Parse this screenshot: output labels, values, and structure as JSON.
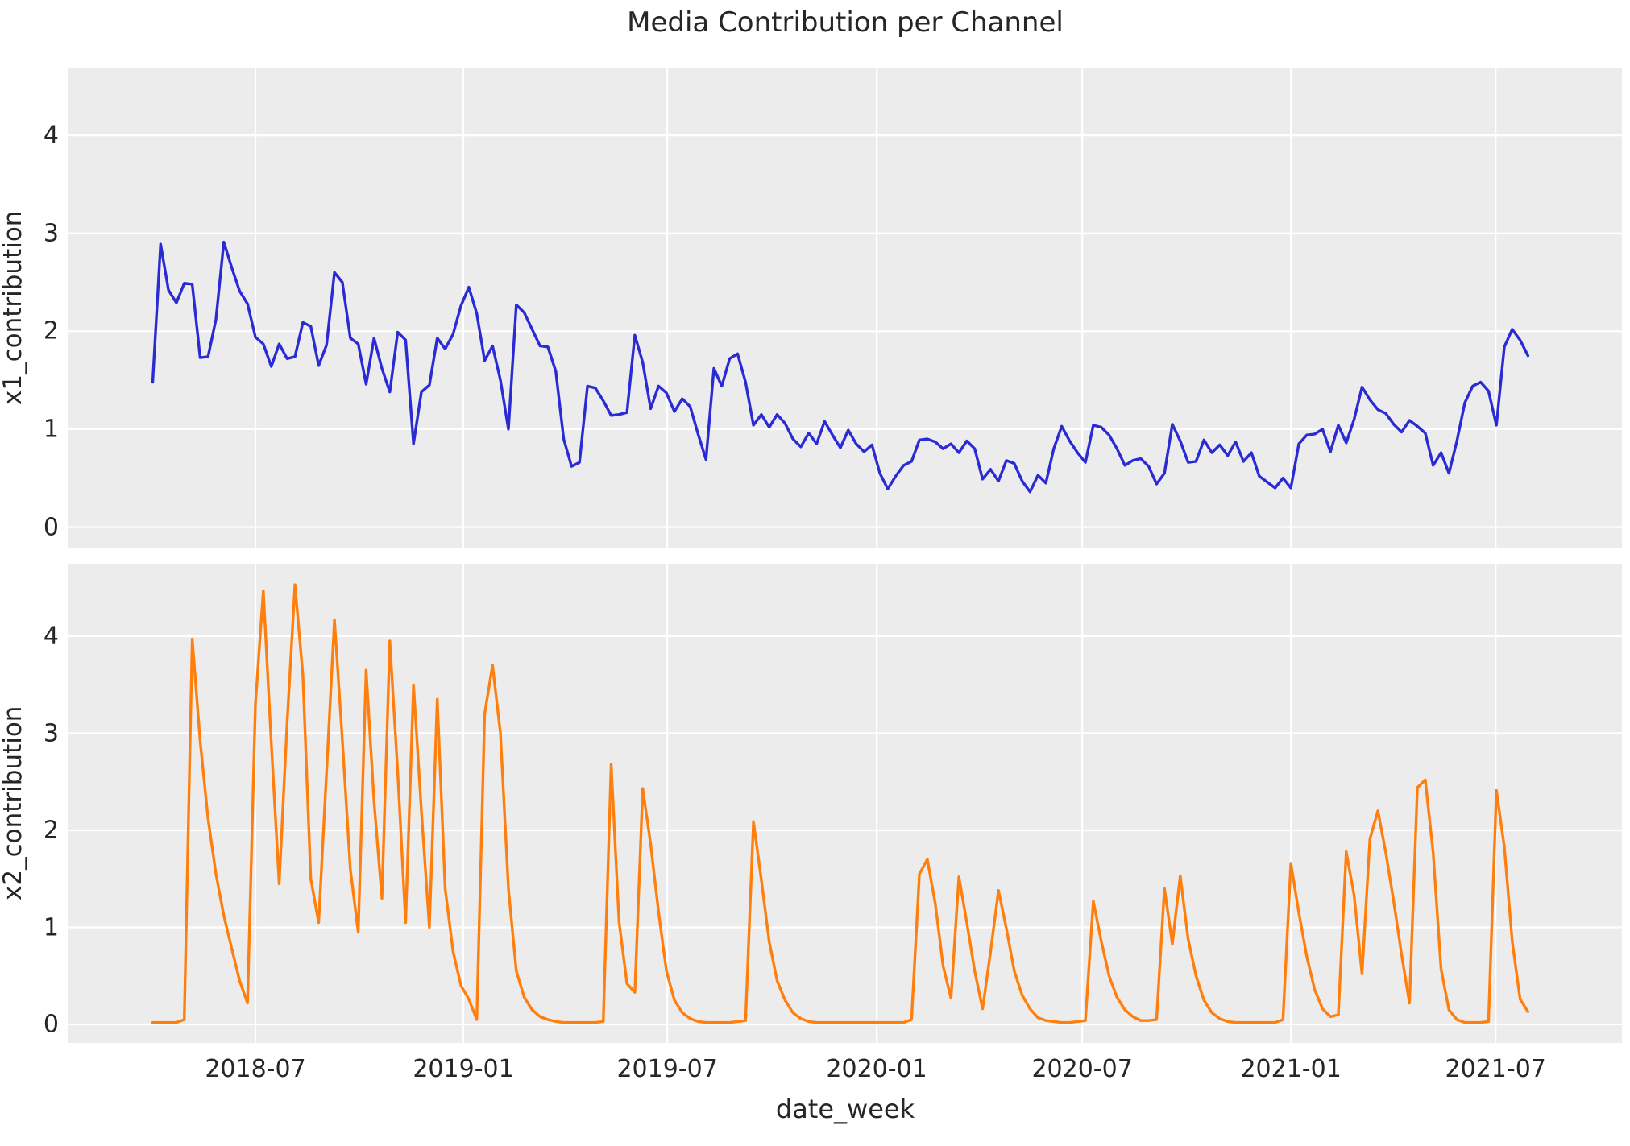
{
  "title": "Media Contribution per Channel",
  "xlabel": "date_week",
  "colors": {
    "x1_line": "#2b2bd6",
    "x2_line": "#ff7f0e",
    "plot_background": "#ececec",
    "grid": "#ffffff",
    "text": "#262626",
    "figure_background": "#ffffff"
  },
  "axes": {
    "y_ticks": [
      0,
      1,
      2,
      3,
      4
    ],
    "ylim": [
      -0.22,
      4.72
    ],
    "x_ticks": [
      {
        "label": "2018-07",
        "week": 13.0
      },
      {
        "label": "2019-01",
        "week": 39.3
      },
      {
        "label": "2019-07",
        "week": 65.1
      },
      {
        "label": "2020-01",
        "week": 91.6
      },
      {
        "label": "2020-07",
        "week": 117.6
      },
      {
        "label": "2021-01",
        "week": 144.0
      },
      {
        "label": "2021-07",
        "week": 169.9
      }
    ],
    "xlim_weeks": [
      -10.65,
      185.9
    ],
    "grid": true
  },
  "chart_data": [
    {
      "type": "line",
      "name": "x1_contribution",
      "ylabel": "x1_contribution",
      "color_key": "x1_line",
      "x0_date": "2018-04-01",
      "x_step_days": 7,
      "values": [
        1.48,
        2.89,
        2.42,
        2.29,
        2.49,
        2.48,
        1.73,
        1.74,
        2.12,
        2.91,
        2.65,
        2.41,
        2.28,
        1.94,
        1.87,
        1.64,
        1.87,
        1.72,
        1.74,
        2.09,
        2.05,
        1.65,
        1.86,
        2.6,
        2.5,
        1.93,
        1.87,
        1.46,
        1.93,
        1.62,
        1.38,
        1.99,
        1.91,
        0.85,
        1.38,
        1.45,
        1.93,
        1.82,
        1.97,
        2.26,
        2.45,
        2.18,
        1.7,
        1.85,
        1.5,
        1.0,
        2.27,
        2.19,
        2.02,
        1.85,
        1.84,
        1.59,
        0.9,
        0.62,
        0.66,
        1.44,
        1.42,
        1.29,
        1.14,
        1.15,
        1.17,
        1.96,
        1.68,
        1.21,
        1.44,
        1.37,
        1.18,
        1.31,
        1.23,
        0.95,
        0.69,
        1.62,
        1.44,
        1.72,
        1.77,
        1.48,
        1.04,
        1.15,
        1.02,
        1.15,
        1.06,
        0.9,
        0.82,
        0.96,
        0.85,
        1.08,
        0.94,
        0.81,
        0.99,
        0.85,
        0.77,
        0.84,
        0.55,
        0.39,
        0.52,
        0.63,
        0.67,
        0.89,
        0.9,
        0.87,
        0.8,
        0.85,
        0.76,
        0.88,
        0.8,
        0.49,
        0.59,
        0.47,
        0.68,
        0.65,
        0.47,
        0.36,
        0.53,
        0.45,
        0.8,
        1.03,
        0.88,
        0.76,
        0.66,
        1.04,
        1.02,
        0.94,
        0.8,
        0.63,
        0.68,
        0.7,
        0.62,
        0.44,
        0.55,
        1.05,
        0.88,
        0.66,
        0.67,
        0.89,
        0.76,
        0.84,
        0.73,
        0.87,
        0.67,
        0.76,
        0.52,
        0.46,
        0.4,
        0.5,
        0.4,
        0.85,
        0.94,
        0.95,
        1.0,
        0.77,
        1.04,
        0.86,
        1.1,
        1.43,
        1.3,
        1.2,
        1.16,
        1.05,
        0.97,
        1.09,
        1.03,
        0.96,
        0.63,
        0.76,
        0.55,
        0.88,
        1.27,
        1.44,
        1.48,
        1.39,
        1.04,
        1.84,
        2.02,
        1.91,
        1.75
      ]
    },
    {
      "type": "line",
      "name": "x2_contribution",
      "ylabel": "x2_contribution",
      "color_key": "x2_line",
      "x0_date": "2018-04-01",
      "x_step_days": 7,
      "values": [
        0.02,
        0.02,
        0.02,
        0.02,
        0.05,
        3.97,
        2.92,
        2.12,
        1.55,
        1.12,
        0.78,
        0.45,
        0.22,
        3.3,
        4.47,
        2.9,
        1.45,
        3.1,
        4.53,
        3.6,
        1.5,
        1.05,
        2.6,
        4.17,
        2.93,
        1.6,
        0.95,
        3.65,
        2.3,
        1.3,
        3.95,
        2.6,
        1.05,
        3.5,
        2.2,
        1.0,
        3.35,
        1.4,
        0.75,
        0.4,
        0.26,
        0.05,
        3.2,
        3.7,
        3.0,
        1.4,
        0.55,
        0.28,
        0.15,
        0.08,
        0.05,
        0.03,
        0.02,
        0.02,
        0.02,
        0.02,
        0.02,
        0.03,
        2.68,
        1.06,
        0.42,
        0.33,
        2.43,
        1.86,
        1.16,
        0.55,
        0.25,
        0.12,
        0.06,
        0.03,
        0.02,
        0.02,
        0.02,
        0.02,
        0.03,
        0.04,
        2.09,
        1.49,
        0.85,
        0.45,
        0.25,
        0.12,
        0.06,
        0.03,
        0.02,
        0.02,
        0.02,
        0.02,
        0.02,
        0.02,
        0.02,
        0.02,
        0.02,
        0.02,
        0.02,
        0.02,
        0.05,
        1.55,
        1.7,
        1.25,
        0.6,
        0.27,
        1.52,
        1.05,
        0.55,
        0.16,
        0.75,
        1.38,
        0.99,
        0.55,
        0.3,
        0.16,
        0.07,
        0.04,
        0.03,
        0.02,
        0.02,
        0.03,
        0.04,
        1.27,
        0.86,
        0.5,
        0.28,
        0.15,
        0.08,
        0.04,
        0.04,
        0.05,
        1.4,
        0.83,
        1.53,
        0.88,
        0.5,
        0.25,
        0.12,
        0.06,
        0.03,
        0.02,
        0.02,
        0.02,
        0.02,
        0.02,
        0.02,
        0.05,
        1.66,
        1.15,
        0.7,
        0.36,
        0.16,
        0.08,
        0.1,
        1.78,
        1.33,
        0.52,
        1.91,
        2.2,
        1.77,
        1.27,
        0.72,
        0.22,
        2.44,
        2.52,
        1.77,
        0.57,
        0.15,
        0.05,
        0.02,
        0.02,
        0.02,
        0.03,
        2.41,
        1.83,
        0.86,
        0.26,
        0.13
      ]
    }
  ]
}
